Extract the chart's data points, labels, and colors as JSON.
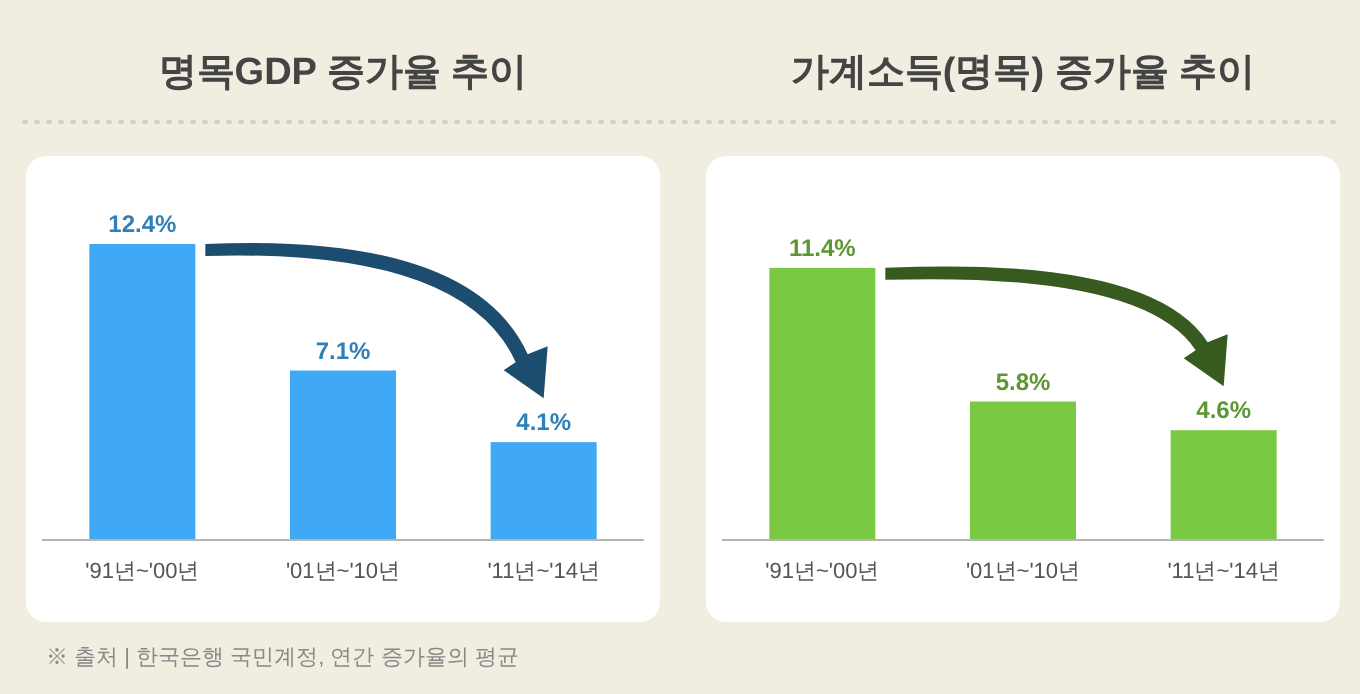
{
  "chart_data": [
    {
      "type": "bar",
      "title": "명목GDP 증가율 추이",
      "categories": [
        "'91년~'00년",
        "'01년~'10년",
        "'11년~'14년"
      ],
      "values": [
        12.4,
        7.1,
        4.1
      ],
      "value_labels": [
        "12.4%",
        "7.1%",
        "4.1%"
      ],
      "color": "#3fa9f5",
      "annotations": [
        "※ 출처 | 한국은행 국민계정, 연간 증가율의 평균"
      ]
    },
    {
      "type": "bar",
      "title": "가계소득(명목) 증가율 추이",
      "categories": [
        "'91년~'00년",
        "'01년~'10년",
        "'11년~'14년"
      ],
      "values": [
        11.4,
        5.8,
        4.6
      ],
      "value_labels": [
        "11.4%",
        "5.8%",
        "4.6%"
      ],
      "color": "#7ac943"
    }
  ]
}
